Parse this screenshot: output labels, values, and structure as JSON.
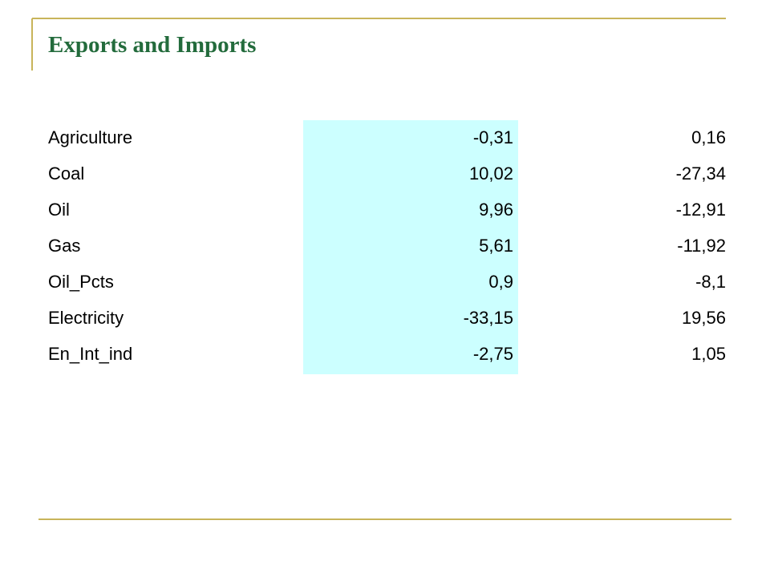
{
  "header": {
    "title": "Exports and Imports"
  },
  "table": {
    "rows": [
      [
        "Agriculture",
        "-0,31",
        "0,16"
      ],
      [
        "Coal",
        "10,02",
        "-27,34"
      ],
      [
        "Oil",
        "9,96",
        "-12,91"
      ],
      [
        "Gas",
        "5,61",
        "-11,92"
      ],
      [
        "Oil_Pcts",
        "0,9",
        "-8,1"
      ],
      [
        "Electricity",
        "-33,15",
        "19,56"
      ],
      [
        "En_Int_ind",
        "-2,75",
        "1,05"
      ]
    ]
  }
}
